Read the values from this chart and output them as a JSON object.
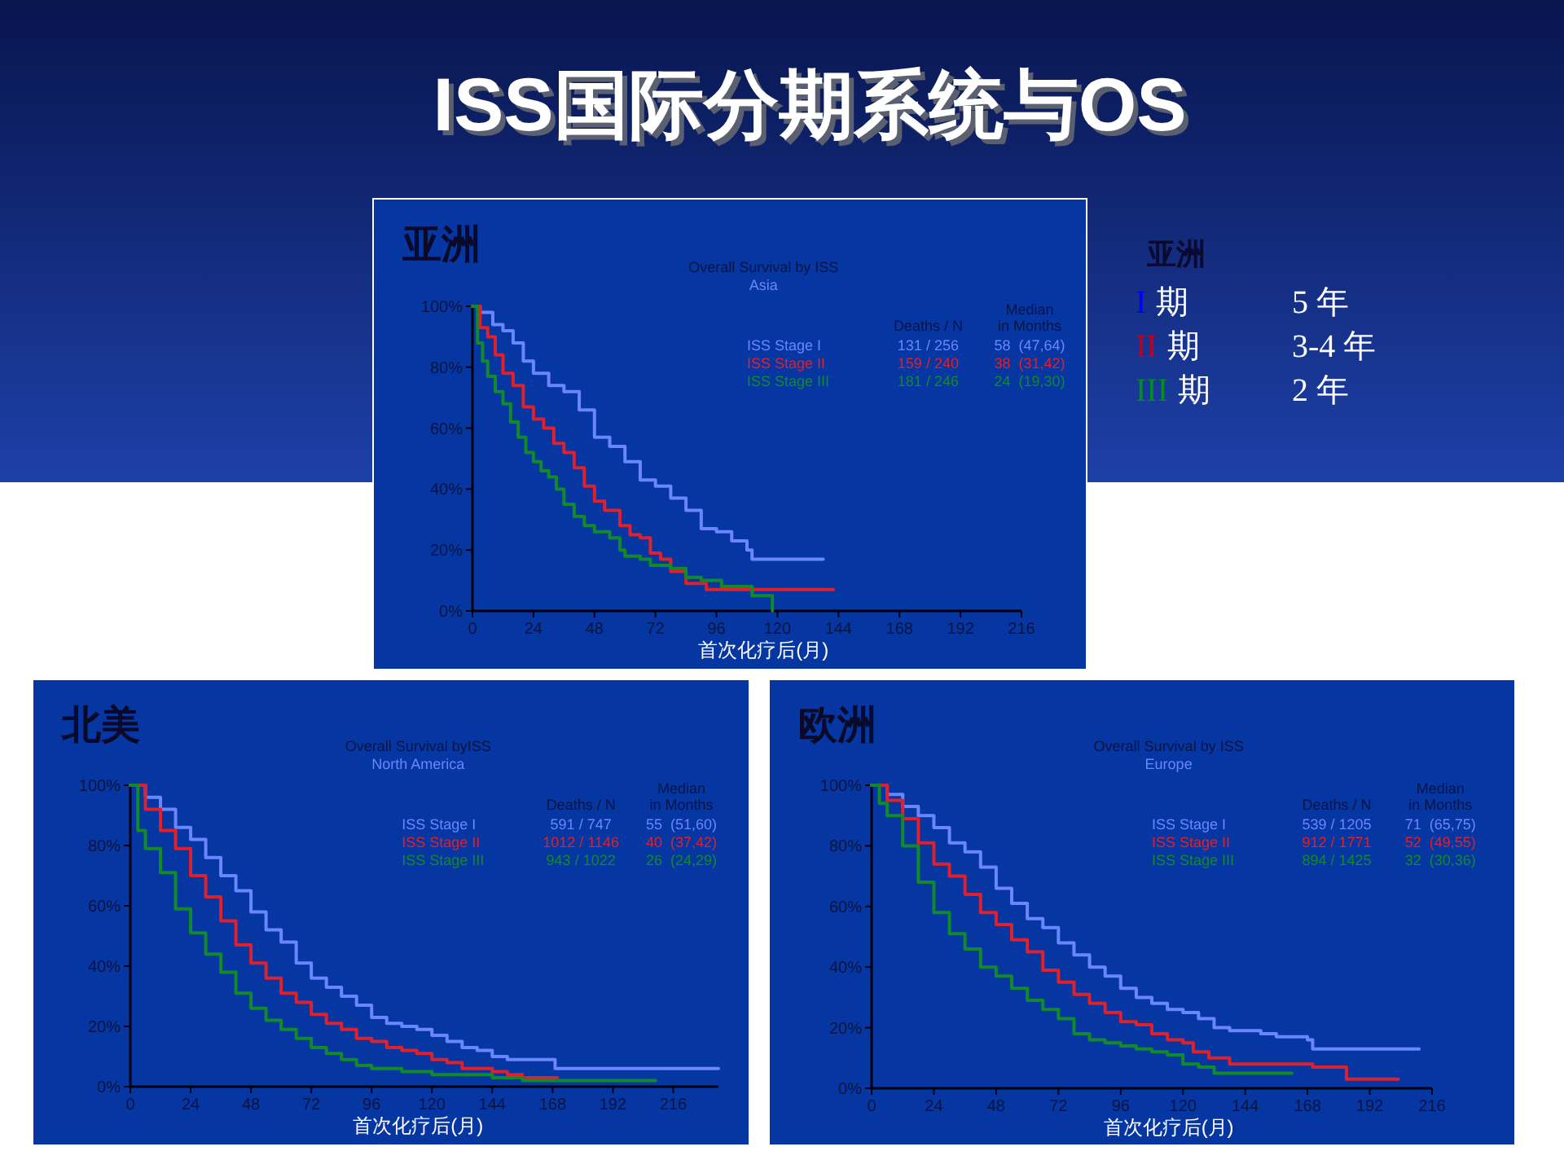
{
  "chart_data": [
    {
      "type": "other",
      "title": "ISS国际分期系统与OS"
    },
    {
      "type": "step",
      "title": "亚洲",
      "subtitle": "Overall Survival by ISS",
      "xlabel": "首次化疗后(月)",
      "legend": "top right",
      "grid": false,
      "xlim": [
        0,
        216
      ],
      "xticks": [
        0,
        24,
        48,
        72,
        96,
        120,
        144,
        168,
        192,
        216
      ],
      "ylim": [
        0,
        100
      ],
      "yticks": [
        {
          "value": 0,
          "label": "0%"
        },
        {
          "value": 20,
          "label": "20%"
        },
        {
          "value": 40,
          "label": "40%"
        },
        {
          "value": 60,
          "label": "60%"
        },
        {
          "value": 80,
          "label": "80%"
        },
        {
          "value": 100,
          "label": "100%"
        }
      ],
      "annotations": [
        "Asia",
        "Deaths / N",
        "Median",
        "in Months",
        "131 / 256",
        "58  (47,64)",
        "159 / 240",
        "38  (31,42)",
        "181 / 246",
        "24  (19,30)"
      ],
      "series": [
        {
          "name": "ISS Stage I",
          "color": "#6a86ff",
          "x": [
            0,
            3,
            8,
            12,
            16,
            20,
            24,
            30,
            36,
            42,
            48,
            54,
            60,
            66,
            72,
            78,
            84,
            90,
            96,
            102,
            108,
            110,
            138
          ],
          "values": [
            100,
            98,
            94,
            92,
            88,
            82,
            78,
            74,
            72,
            66,
            57,
            54,
            49,
            43,
            41,
            37,
            33,
            27,
            26,
            23,
            20,
            17,
            17
          ]
        },
        {
          "name": "ISS Stage II",
          "color": "#e0202a",
          "x": [
            0,
            3,
            6,
            9,
            12,
            16,
            20,
            24,
            28,
            32,
            36,
            40,
            44,
            48,
            52,
            56,
            58,
            62,
            66,
            70,
            74,
            78,
            84,
            92,
            120,
            142
          ],
          "values": [
            100,
            93,
            90,
            84,
            78,
            74,
            67,
            63,
            60,
            55,
            52,
            47,
            41,
            36,
            33,
            33,
            28,
            25,
            24,
            19,
            17,
            13,
            9,
            7,
            7,
            7
          ]
        },
        {
          "name": "ISS Stage III",
          "color": "#138a2a",
          "x": [
            0,
            2,
            4,
            6,
            9,
            12,
            15,
            18,
            21,
            24,
            27,
            30,
            33,
            36,
            40,
            44,
            48,
            54,
            58,
            60,
            66,
            70,
            78,
            84,
            90,
            98,
            110,
            118,
            118
          ],
          "values": [
            100,
            88,
            82,
            77,
            72,
            68,
            62,
            57,
            52,
            49,
            46,
            44,
            40,
            35,
            31,
            28,
            26,
            24,
            20,
            18,
            17,
            15,
            14,
            11,
            10,
            8,
            5,
            5,
            0
          ]
        }
      ]
    },
    {
      "type": "other",
      "title": "亚洲",
      "annotations": [
        "I",
        "期",
        "5 年",
        "II",
        "期",
        "3-4 年",
        "III",
        "期",
        "2 年"
      ],
      "colors": [
        "#0000ff",
        "#c00020",
        "#009020"
      ]
    },
    {
      "type": "step",
      "title": "北美",
      "subtitle": "Overall Survival byISS",
      "xlabel": "首次化疗后(月)",
      "legend": "top right",
      "grid": false,
      "xlim": [
        0,
        234
      ],
      "xticks": [
        0,
        24,
        48,
        72,
        96,
        120,
        144,
        168,
        192,
        216
      ],
      "ylim": [
        0,
        100
      ],
      "yticks": [
        {
          "value": 0,
          "label": "0%"
        },
        {
          "value": 20,
          "label": "20%"
        },
        {
          "value": 40,
          "label": "40%"
        },
        {
          "value": 60,
          "label": "60%"
        },
        {
          "value": 80,
          "label": "80%"
        },
        {
          "value": 100,
          "label": "100%"
        }
      ],
      "annotations": [
        "North America",
        "Deaths / N",
        "Median",
        "in Months",
        "591 / 747",
        "55  (51,60)",
        "1012 / 1146",
        "40  (37,42)",
        "943 / 1022",
        "26  (24,29)"
      ],
      "series": [
        {
          "name": "ISS Stage I",
          "color": "#6a86ff",
          "x": [
            0,
            6,
            12,
            18,
            24,
            30,
            36,
            42,
            48,
            54,
            60,
            66,
            72,
            78,
            84,
            90,
            96,
            102,
            108,
            114,
            120,
            126,
            132,
            138,
            144,
            150,
            168,
            169,
            234
          ],
          "values": [
            100,
            96,
            92,
            86,
            82,
            76,
            70,
            65,
            58,
            52,
            48,
            41,
            36,
            33,
            30,
            27,
            23,
            21,
            20,
            19,
            17,
            15,
            13,
            12,
            10,
            9,
            9,
            6,
            6
          ]
        },
        {
          "name": "ISS Stage II",
          "color": "#e0202a",
          "x": [
            0,
            6,
            12,
            18,
            24,
            30,
            36,
            42,
            48,
            54,
            60,
            66,
            72,
            78,
            84,
            90,
            96,
            102,
            108,
            114,
            120,
            126,
            132,
            138,
            144,
            150,
            156,
            170
          ],
          "values": [
            100,
            92,
            85,
            79,
            70,
            63,
            55,
            47,
            41,
            36,
            31,
            28,
            24,
            21,
            19,
            16,
            15,
            13,
            12,
            11,
            9,
            8,
            6,
            6,
            5,
            4,
            3,
            3
          ]
        },
        {
          "name": "ISS Stage III",
          "color": "#138a2a",
          "x": [
            0,
            3,
            6,
            12,
            18,
            24,
            30,
            36,
            42,
            48,
            54,
            60,
            66,
            72,
            78,
            84,
            90,
            96,
            102,
            108,
            120,
            132,
            144,
            156,
            209
          ],
          "values": [
            100,
            85,
            79,
            71,
            59,
            51,
            44,
            38,
            31,
            26,
            22,
            19,
            16,
            13,
            11,
            9,
            7,
            6,
            6,
            5,
            4,
            4,
            3,
            2,
            2
          ]
        }
      ]
    },
    {
      "type": "step",
      "title": "欧洲",
      "subtitle": "Overall Survival by ISS",
      "xlabel": "首次化疗后(月)",
      "legend": "top right",
      "grid": false,
      "xlim": [
        0,
        216
      ],
      "xticks": [
        0,
        24,
        48,
        72,
        96,
        120,
        144,
        168,
        192,
        216
      ],
      "ylim": [
        0,
        100
      ],
      "yticks": [
        {
          "value": 0,
          "label": "0%"
        },
        {
          "value": 20,
          "label": "20%"
        },
        {
          "value": 40,
          "label": "40%"
        },
        {
          "value": 60,
          "label": "60%"
        },
        {
          "value": 80,
          "label": "80%"
        },
        {
          "value": 100,
          "label": "100%"
        }
      ],
      "annotations": [
        "Europe",
        "Deaths / N",
        "Median",
        "in Months",
        "539 / 1205",
        "71  (65,75)",
        "912 / 1771",
        "52  (49,55)",
        "894 / 1425",
        "32  (30,36)"
      ],
      "series": [
        {
          "name": "ISS Stage I",
          "color": "#6a86ff",
          "x": [
            0,
            6,
            12,
            18,
            24,
            30,
            36,
            42,
            48,
            54,
            60,
            66,
            72,
            78,
            84,
            90,
            96,
            102,
            108,
            114,
            120,
            126,
            132,
            138,
            150,
            156,
            168,
            170,
            211
          ],
          "values": [
            100,
            97,
            93,
            90,
            86,
            81,
            78,
            73,
            66,
            61,
            56,
            53,
            48,
            44,
            40,
            37,
            33,
            30,
            28,
            26,
            25,
            23,
            20,
            19,
            18,
            17,
            16,
            13,
            13
          ]
        },
        {
          "name": "ISS Stage II",
          "color": "#e0202a",
          "x": [
            0,
            6,
            12,
            18,
            24,
            30,
            36,
            42,
            48,
            54,
            60,
            66,
            72,
            78,
            84,
            90,
            96,
            102,
            108,
            114,
            120,
            124,
            130,
            138,
            168,
            170,
            180,
            183,
            203
          ],
          "values": [
            100,
            95,
            89,
            81,
            74,
            70,
            64,
            58,
            54,
            49,
            45,
            39,
            35,
            31,
            28,
            25,
            22,
            21,
            18,
            16,
            15,
            12,
            10,
            8,
            8,
            7,
            7,
            3,
            3
          ]
        },
        {
          "name": "ISS Stage III",
          "color": "#138a2a",
          "x": [
            0,
            3,
            6,
            12,
            18,
            24,
            30,
            36,
            42,
            48,
            54,
            60,
            66,
            72,
            78,
            84,
            90,
            96,
            102,
            108,
            114,
            120,
            126,
            132,
            162
          ],
          "values": [
            100,
            94,
            90,
            80,
            68,
            58,
            51,
            46,
            40,
            37,
            33,
            29,
            26,
            23,
            18,
            16,
            15,
            14,
            13,
            12,
            11,
            8,
            7,
            5,
            5
          ]
        }
      ]
    }
  ]
}
